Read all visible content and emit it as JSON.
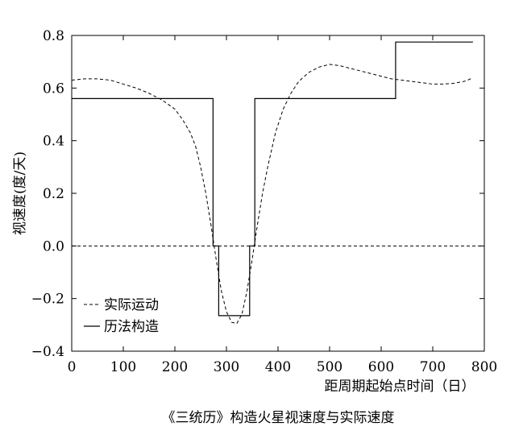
{
  "chart_data": {
    "type": "line",
    "title": "",
    "caption": "《三统历》构造火星视速度与实际速度",
    "xlabel": "距周期起始点时间（日）",
    "ylabel": "视速度(度/天)",
    "xlim": [
      0,
      800
    ],
    "ylim": [
      -0.4,
      0.8
    ],
    "xticks": [
      "0",
      "100",
      "200",
      "300",
      "400",
      "500",
      "600",
      "700",
      "800"
    ],
    "yticks": [
      "−0.4",
      "−0.2",
      "0.0",
      "0.2",
      "0.4",
      "0.6",
      "0.8"
    ],
    "xtick_values": [
      0,
      100,
      200,
      300,
      400,
      500,
      600,
      700,
      800
    ],
    "ytick_values": [
      -0.4,
      -0.2,
      0.0,
      0.2,
      0.4,
      0.6,
      0.8
    ],
    "grid": false,
    "legend_position": "bottom-left",
    "reference_line": {
      "y": 0.0,
      "style": "dashed"
    },
    "series": [
      {
        "name": "实际运动",
        "style": "dashed",
        "x": [
          0,
          25,
          50,
          75,
          100,
          125,
          150,
          175,
          200,
          215,
          230,
          240,
          250,
          260,
          270,
          280,
          290,
          300,
          310,
          320,
          330,
          340,
          350,
          360,
          370,
          380,
          395,
          410,
          425,
          440,
          460,
          480,
          500,
          520,
          540,
          560,
          580,
          600,
          620,
          640,
          660,
          680,
          700,
          720,
          740,
          760,
          770,
          778
        ],
        "y": [
          0.63,
          0.635,
          0.635,
          0.63,
          0.615,
          0.6,
          0.58,
          0.555,
          0.52,
          0.48,
          0.43,
          0.38,
          0.3,
          0.2,
          0.08,
          -0.05,
          -0.17,
          -0.25,
          -0.29,
          -0.295,
          -0.26,
          -0.17,
          -0.05,
          0.08,
          0.2,
          0.3,
          0.43,
          0.52,
          0.58,
          0.625,
          0.66,
          0.68,
          0.69,
          0.685,
          0.675,
          0.665,
          0.655,
          0.645,
          0.635,
          0.63,
          0.625,
          0.62,
          0.615,
          0.615,
          0.618,
          0.625,
          0.632,
          0.64
        ]
      },
      {
        "name": "历法构造",
        "style": "solid",
        "x": [
          0,
          274,
          274,
          285,
          285,
          345,
          345,
          355,
          355,
          628,
          628,
          778
        ],
        "y": [
          0.56,
          0.56,
          0.0,
          0.0,
          -0.265,
          -0.265,
          0.0,
          0.0,
          0.56,
          0.56,
          0.775,
          0.775
        ]
      }
    ]
  }
}
